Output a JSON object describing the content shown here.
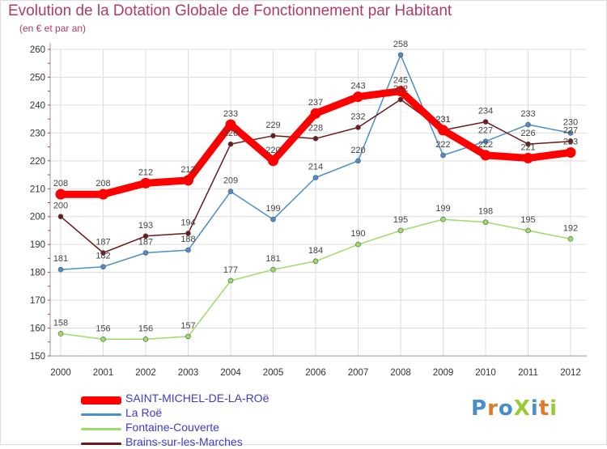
{
  "chart_data": {
    "type": "line",
    "title": "Evolution de la Dotation Globale de Fonctionnement par Habitant",
    "subtitle": "(en € et par an)",
    "xlabel": "",
    "ylabel": "",
    "categories": [
      "2000",
      "2001",
      "2002",
      "2003",
      "2004",
      "2005",
      "2006",
      "2007",
      "2008",
      "2009",
      "2010",
      "2011",
      "2012"
    ],
    "ylim": [
      150,
      260
    ],
    "yticks": [
      150,
      160,
      170,
      180,
      190,
      200,
      210,
      220,
      230,
      240,
      250,
      260
    ],
    "grid": true,
    "legend_position": "bottom-left",
    "series": [
      {
        "name": "SAINT-MICHEL-DE-LA-ROë",
        "color": "#ff0000",
        "values": [
          208,
          208,
          212,
          213,
          233,
          220,
          237,
          243,
          245,
          231,
          222,
          221,
          223
        ]
      },
      {
        "name": "La Roë",
        "color": "#4a8ec9",
        "values": [
          181,
          182,
          187,
          188,
          209,
          199,
          214,
          220,
          258,
          222,
          227,
          233,
          230
        ]
      },
      {
        "name": "Fontaine-Couverte",
        "color": "#99dd66",
        "values": [
          158,
          156,
          156,
          157,
          177,
          181,
          184,
          190,
          195,
          199,
          198,
          195,
          192
        ]
      },
      {
        "name": "Brains-sur-les-Marches",
        "color": "#6b1a1a",
        "values": [
          200,
          187,
          193,
          194,
          226,
          229,
          228,
          232,
          242,
          231,
          234,
          226,
          227
        ]
      }
    ]
  },
  "brand": {
    "logo_text": "ProXiti",
    "colors": [
      "#4a8ec9",
      "#e0792a",
      "#4a8ec9",
      "#99cc33",
      "#4a8ec9",
      "#e0792a",
      "#99cc33"
    ]
  }
}
